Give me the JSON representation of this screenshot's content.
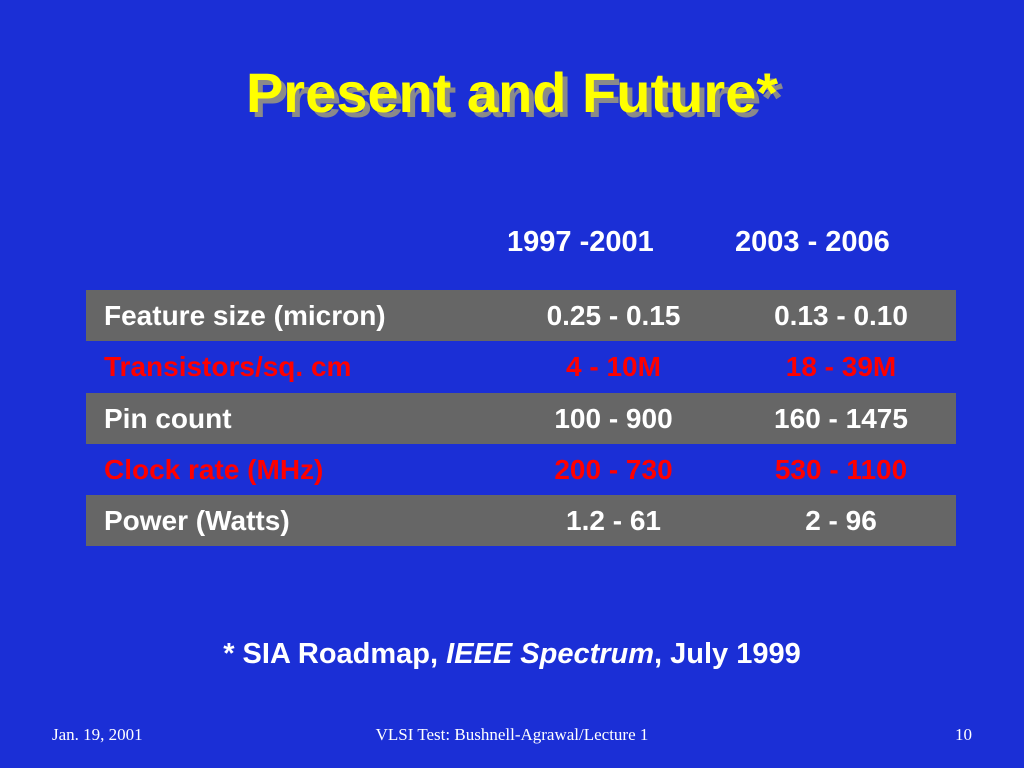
{
  "header": {
    "title": "Present and Future*"
  },
  "table": {
    "columns": [
      "1997 -2001",
      "2003 - 2006"
    ],
    "rows": [
      [
        "Feature size (micron)",
        "0.25 - 0.15",
        "0.13 - 0.10"
      ],
      [
        "Transistors/sq. cm",
        "4 - 10M",
        "18 - 39M"
      ],
      [
        "Pin count",
        "100 - 900",
        "160 - 1475"
      ],
      [
        "Clock rate (MHz)",
        "200 - 730",
        "530 - 1100"
      ],
      [
        "Power (Watts)",
        "1.2 - 61",
        "2 - 96"
      ]
    ]
  },
  "footnote": {
    "parts": [
      "* SIA Roadmap, ",
      "IEEE Spectrum",
      ", July 1999"
    ]
  },
  "footer": {
    "date": "Jan. 19, 2001",
    "course": "VLSI Test: Bushnell-Agrawal/Lecture 1",
    "page": "10"
  }
}
